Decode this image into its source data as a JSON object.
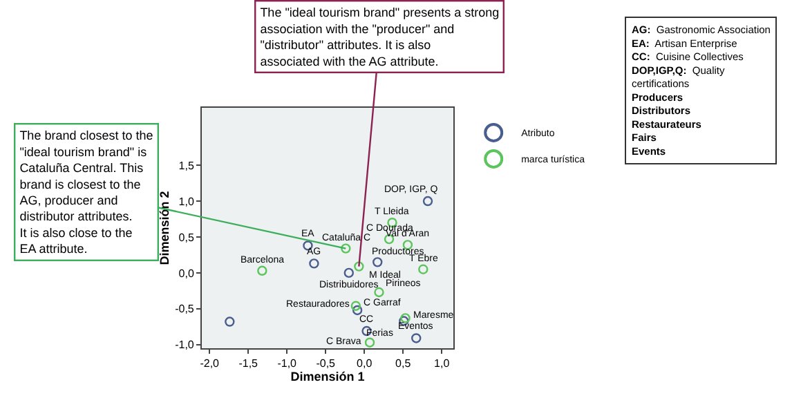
{
  "chart_data": {
    "type": "scatter",
    "xlabel": "Dimensión 1",
    "ylabel": "Dimensión 2",
    "xlim": [
      -2.1,
      1.15
    ],
    "ylim": [
      -1.05,
      2.3
    ],
    "xticks": [
      {
        "value": -2.0,
        "label": "-2,0"
      },
      {
        "value": -1.5,
        "label": "-1,5"
      },
      {
        "value": -1.0,
        "label": "-1,0"
      },
      {
        "value": -0.5,
        "label": "-0,5"
      },
      {
        "value": 0.0,
        "label": "0,0"
      },
      {
        "value": 0.5,
        "label": "0,5"
      },
      {
        "value": 1.0,
        "label": "1,0"
      }
    ],
    "yticks": [
      {
        "value": -1.0,
        "label": "-1,0"
      },
      {
        "value": -0.5,
        "label": "-0,5"
      },
      {
        "value": 0.0,
        "label": "0,0"
      },
      {
        "value": 0.5,
        "label": "0,5"
      },
      {
        "value": 1.0,
        "label": "1,0"
      },
      {
        "value": 1.5,
        "label": "1,5"
      }
    ],
    "marker": "circle",
    "grid": false,
    "legend": "right",
    "series": [
      {
        "name": "Atributo",
        "color": "#4a5d8f",
        "x": [
          0.82,
          -0.73,
          -0.65,
          0.17,
          -0.2,
          -0.09,
          0.03,
          0.51,
          0.67,
          -1.74
        ],
        "values": [
          1.0,
          0.38,
          0.13,
          0.15,
          0.0,
          -0.52,
          -0.81,
          -0.67,
          -0.91,
          -0.68
        ]
      },
      {
        "name": "marca turística",
        "color": "#5cc45c",
        "x": [
          0.36,
          0.32,
          0.56,
          -0.24,
          -0.07,
          0.76,
          -1.32,
          0.19,
          -0.11,
          0.53,
          0.07
        ],
        "values": [
          0.7,
          0.47,
          0.39,
          0.34,
          0.09,
          0.05,
          0.03,
          -0.27,
          -0.46,
          -0.63,
          -0.97
        ]
      }
    ],
    "annotations": [
      {
        "text": "The brand closest to the \"ideal tourism brand\" is Cataluña Central. This brand is closest to the AG, producer and distributor attributes. It is also close to the EA attribute.",
        "x": -0.24,
        "y": 0.34
      },
      {
        "text": "The \"ideal tourism brand\" presents a strong association with the \"producer\" and \"distributor\" attributes. It is also associated with the AG attribute.",
        "x": -0.07,
        "y": 0.09
      },
      "AG: Gastronomic Association\nEA: Artisan Enterprise\nCC: Cuisine Collectives\nDOP,IGP,Q: Quality certifications\nProducers\nDistributors\nRestaurateurs\nFairs\nEvents",
      {
        "text": "DOP, IGP, Q",
        "x": 0.82,
        "y": 1.0
      },
      {
        "text": "EA",
        "x": -0.73,
        "y": 0.38
      },
      {
        "text": "AG",
        "x": -0.65,
        "y": 0.13
      },
      {
        "text": "Productores",
        "x": 0.17,
        "y": 0.15
      },
      {
        "text": "Distribuidores",
        "x": -0.2,
        "y": 0.0
      },
      {
        "text": "Restauradores",
        "x": -0.09,
        "y": -0.52
      },
      {
        "text": "CC",
        "x": 0.03,
        "y": -0.81
      },
      {
        "text": "Ferias",
        "x": 0.51,
        "y": -0.67
      },
      {
        "text": "Eventos",
        "x": 0.67,
        "y": -0.91
      },
      {
        "text": "T Lleida",
        "x": 0.36,
        "y": 0.7
      },
      {
        "text": "C Dourada",
        "x": 0.32,
        "y": 0.47
      },
      {
        "text": "Val d'Aran",
        "x": 0.56,
        "y": 0.39
      },
      {
        "text": "Cataluña C",
        "x": -0.24,
        "y": 0.34
      },
      {
        "text": "M Ideal",
        "x": -0.07,
        "y": 0.09
      },
      {
        "text": "T Ebre",
        "x": 0.76,
        "y": 0.05
      },
      {
        "text": "Barcelona",
        "x": -1.32,
        "y": 0.03
      },
      {
        "text": "Pirineos",
        "x": 0.19,
        "y": -0.27
      },
      {
        "text": "C Garraf",
        "x": -0.11,
        "y": -0.46
      },
      {
        "text": "Maresme",
        "x": 0.53,
        "y": -0.63
      },
      {
        "text": "C Brava",
        "x": 0.07,
        "y": -0.97
      }
    ]
  }
}
